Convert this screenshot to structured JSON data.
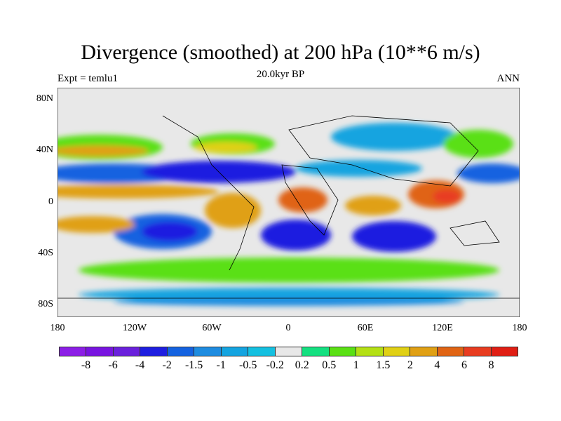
{
  "title": "Divergence (smoothed) at 200 hPa (10**6 m/s)",
  "left_label": "Expt = temlu1",
  "center_label": "20.0kyr BP",
  "right_label": "ANN",
  "map": {
    "lat_labels": [
      "80N",
      "40N",
      "0",
      "40S",
      "80S"
    ],
    "lon_labels": [
      "180",
      "120W",
      "60W",
      "0",
      "60E",
      "120E",
      "180"
    ]
  },
  "colorbar": {
    "colors": [
      "#8c1ee6",
      "#7814e0",
      "#6a20dc",
      "#1e1ee0",
      "#1462e0",
      "#1e8ce0",
      "#14a4e0",
      "#14c0e0",
      "#e8e8e8",
      "#14e080",
      "#5ae014",
      "#b4e014",
      "#e0d014",
      "#e0a014",
      "#e06414",
      "#e83c20",
      "#e01e14"
    ],
    "labels": [
      "-8",
      "-6",
      "-4",
      "-2",
      "-1.5",
      "-1",
      "-0.5",
      "-0.2",
      "0.2",
      "0.5",
      "1",
      "1.5",
      "2",
      "4",
      "6",
      "8"
    ]
  }
}
